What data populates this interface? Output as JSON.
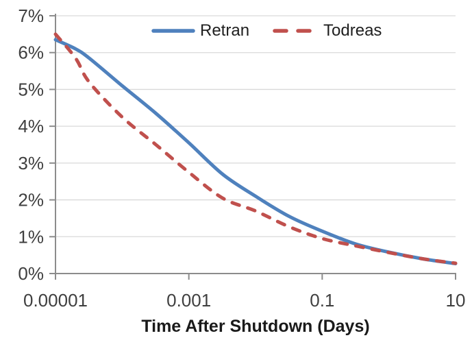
{
  "chart_data": {
    "type": "line",
    "title": "",
    "xlabel": "Time After Shutdown (Days)",
    "ylabel": "",
    "x_scale": "log",
    "xlim": [
      1e-05,
      10
    ],
    "ylim_percent": [
      0,
      7
    ],
    "grid": "horizontal",
    "legend_position": "top-center",
    "y_tick_labels": [
      "0%",
      "1%",
      "2%",
      "3%",
      "4%",
      "5%",
      "6%",
      "7%"
    ],
    "x_tick_labels": [
      "0.00001",
      "0.001",
      "0.1",
      "10"
    ],
    "x_tick_values": [
      1e-05,
      0.001,
      0.1,
      10
    ],
    "x": [
      1e-05,
      2e-05,
      3.2e-05,
      0.0001,
      0.00032,
      0.001,
      0.0032,
      0.01,
      0.032,
      0.1,
      0.32,
      1,
      3.2,
      10
    ],
    "series": [
      {
        "name": "Retran",
        "style": "solid",
        "color": "#4F81BD",
        "values_percent": [
          6.35,
          6.1,
          5.85,
          5.1,
          4.35,
          3.55,
          2.7,
          2.1,
          1.55,
          1.15,
          0.8,
          0.58,
          0.4,
          0.27
        ]
      },
      {
        "name": "Todreas",
        "style": "dashed",
        "color": "#C0504D",
        "values_percent": [
          6.5,
          5.85,
          5.2,
          4.25,
          3.5,
          2.75,
          2.05,
          1.7,
          1.27,
          0.95,
          0.75,
          0.57,
          0.4,
          0.28
        ]
      }
    ]
  },
  "colors": {
    "gridline": "#D9D9D9",
    "axis": "#8C8C8C",
    "tick_text": "#3F3F3F",
    "legend_text": "#1F1F1F",
    "title_text": "#1A1A1A"
  }
}
